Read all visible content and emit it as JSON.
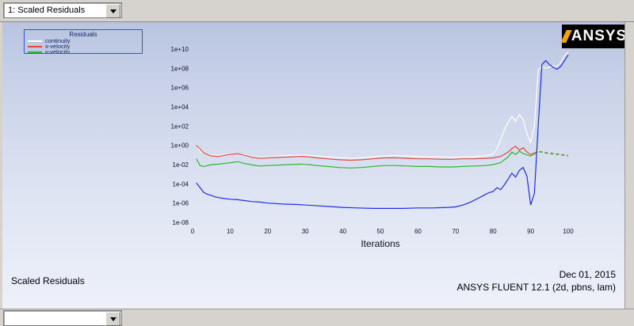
{
  "window": {
    "toolbar": {
      "combo_value": "1: Scaled Residuals"
    },
    "bottom_combo_value": ""
  },
  "logo": {
    "text": "ANSYS",
    "bg": "#000000",
    "fg": "#ffffff",
    "accent": "#f0a500"
  },
  "footer": {
    "caption": "Scaled Residuals",
    "date": "Dec 01, 2015",
    "app": "ANSYS FLUENT 12.1 (2d, pbns, lam)"
  },
  "chart_data": {
    "type": "line",
    "title": "Scaled Residuals",
    "xlabel": "Iterations",
    "x_range": [
      0,
      100
    ],
    "y_scale": "log10",
    "y_axis_exponent_range": [
      10,
      -8
    ],
    "y_ticks": [
      "1e+10",
      "1e+08",
      "1e+06",
      "1e+04",
      "1e+02",
      "1e+00",
      "1e-02",
      "1e-04",
      "1e-06",
      "1e-08"
    ],
    "y_tick_exponents": [
      10,
      8,
      6,
      4,
      2,
      0,
      -2,
      -4,
      -6,
      -8
    ],
    "x_ticks": [
      0,
      10,
      20,
      30,
      40,
      50,
      60,
      70,
      80,
      90,
      100
    ],
    "grid": false,
    "legend": {
      "title": "Residuals",
      "position": "top-left",
      "entries": [
        {
          "label": "continuity",
          "color": "#ffffff"
        },
        {
          "label": "x-velocity",
          "color": "#e04a3f"
        },
        {
          "label": "y-velocity",
          "color": "#2db82d"
        },
        {
          "label": "energy",
          "color": "#1f2fe8"
        }
      ]
    },
    "series": [
      {
        "name": "continuity",
        "color": "#ffffff",
        "points_log10": [
          [
            1,
            0.0
          ],
          [
            2,
            -0.6
          ],
          [
            3,
            -0.85
          ],
          [
            5,
            -1.0
          ],
          [
            7,
            -1.05
          ],
          [
            9,
            -0.95
          ],
          [
            11,
            -0.85
          ],
          [
            12,
            -0.8
          ],
          [
            14,
            -1.0
          ],
          [
            16,
            -1.15
          ],
          [
            18,
            -1.25
          ],
          [
            20,
            -1.2
          ],
          [
            23,
            -1.1
          ],
          [
            26,
            -1.05
          ],
          [
            29,
            -1.0
          ],
          [
            31,
            -1.05
          ],
          [
            33,
            -1.1
          ],
          [
            36,
            -1.2
          ],
          [
            39,
            -1.3
          ],
          [
            42,
            -1.35
          ],
          [
            45,
            -1.3
          ],
          [
            48,
            -1.2
          ],
          [
            51,
            -1.1
          ],
          [
            54,
            -1.05
          ],
          [
            57,
            -1.1
          ],
          [
            60,
            -1.15
          ],
          [
            63,
            -1.2
          ],
          [
            66,
            -1.2
          ],
          [
            69,
            -1.25
          ],
          [
            72,
            -1.2
          ],
          [
            75,
            -1.15
          ],
          [
            78,
            -1.1
          ],
          [
            80,
            -0.9
          ],
          [
            81,
            -0.4
          ],
          [
            82,
            0.6
          ],
          [
            83,
            1.6
          ],
          [
            84,
            2.4
          ],
          [
            85,
            3.0
          ],
          [
            86,
            2.5
          ],
          [
            87,
            3.2
          ],
          [
            88,
            2.7
          ],
          [
            89,
            1.2
          ],
          [
            90,
            0.3
          ],
          [
            91,
            2.0
          ],
          [
            92,
            7.8
          ],
          [
            93,
            8.2
          ],
          [
            94,
            8.0
          ],
          [
            95,
            8.1
          ],
          [
            96,
            8.3
          ],
          [
            97,
            8.2
          ],
          [
            98,
            8.6
          ],
          [
            99,
            9.3
          ],
          [
            100,
            9.7
          ]
        ]
      },
      {
        "name": "x-velocity",
        "color": "#e04a3f",
        "dash_from": 91,
        "points_log10": [
          [
            1,
            0.0
          ],
          [
            2,
            -0.4
          ],
          [
            3,
            -0.8
          ],
          [
            5,
            -1.1
          ],
          [
            7,
            -1.15
          ],
          [
            9,
            -1.0
          ],
          [
            11,
            -0.9
          ],
          [
            12,
            -0.85
          ],
          [
            14,
            -1.05
          ],
          [
            16,
            -1.25
          ],
          [
            18,
            -1.35
          ],
          [
            20,
            -1.3
          ],
          [
            23,
            -1.25
          ],
          [
            26,
            -1.2
          ],
          [
            29,
            -1.15
          ],
          [
            31,
            -1.2
          ],
          [
            33,
            -1.3
          ],
          [
            36,
            -1.4
          ],
          [
            39,
            -1.5
          ],
          [
            42,
            -1.55
          ],
          [
            45,
            -1.5
          ],
          [
            48,
            -1.4
          ],
          [
            51,
            -1.3
          ],
          [
            54,
            -1.3
          ],
          [
            57,
            -1.35
          ],
          [
            60,
            -1.4
          ],
          [
            63,
            -1.4
          ],
          [
            66,
            -1.45
          ],
          [
            69,
            -1.45
          ],
          [
            72,
            -1.4
          ],
          [
            75,
            -1.4
          ],
          [
            78,
            -1.35
          ],
          [
            80,
            -1.3
          ],
          [
            82,
            -1.15
          ],
          [
            84,
            -0.7
          ],
          [
            85,
            -0.35
          ],
          [
            86,
            -0.1
          ],
          [
            87,
            -0.5
          ],
          [
            88,
            -0.25
          ],
          [
            89,
            -0.7
          ],
          [
            90,
            -0.95
          ],
          [
            91,
            -0.8
          ],
          [
            92,
            -0.6
          ],
          [
            94,
            -0.75
          ],
          [
            96,
            -0.85
          ],
          [
            98,
            -0.95
          ],
          [
            100,
            -1.05
          ]
        ]
      },
      {
        "name": "y-velocity",
        "color": "#2db82d",
        "dash_from": 91,
        "points_log10": [
          [
            1,
            -1.4
          ],
          [
            2,
            -2.1
          ],
          [
            3,
            -2.2
          ],
          [
            5,
            -2.0
          ],
          [
            7,
            -1.95
          ],
          [
            9,
            -1.85
          ],
          [
            11,
            -1.75
          ],
          [
            12,
            -1.7
          ],
          [
            14,
            -1.9
          ],
          [
            16,
            -2.05
          ],
          [
            18,
            -2.15
          ],
          [
            20,
            -2.1
          ],
          [
            23,
            -2.05
          ],
          [
            26,
            -2.0
          ],
          [
            29,
            -1.95
          ],
          [
            31,
            -2.0
          ],
          [
            33,
            -2.1
          ],
          [
            36,
            -2.2
          ],
          [
            39,
            -2.3
          ],
          [
            42,
            -2.35
          ],
          [
            45,
            -2.3
          ],
          [
            48,
            -2.2
          ],
          [
            51,
            -2.1
          ],
          [
            54,
            -2.1
          ],
          [
            57,
            -2.15
          ],
          [
            60,
            -2.2
          ],
          [
            63,
            -2.2
          ],
          [
            66,
            -2.25
          ],
          [
            69,
            -2.25
          ],
          [
            72,
            -2.2
          ],
          [
            75,
            -2.15
          ],
          [
            78,
            -2.1
          ],
          [
            80,
            -2.0
          ],
          [
            82,
            -1.8
          ],
          [
            84,
            -1.2
          ],
          [
            85,
            -0.7
          ],
          [
            86,
            -0.95
          ],
          [
            87,
            -0.6
          ],
          [
            88,
            -0.85
          ],
          [
            89,
            -1.0
          ],
          [
            90,
            -1.1
          ],
          [
            91,
            -0.9
          ],
          [
            92,
            -0.65
          ],
          [
            94,
            -0.8
          ],
          [
            96,
            -0.9
          ],
          [
            98,
            -1.0
          ],
          [
            100,
            -1.1
          ]
        ]
      },
      {
        "name": "energy",
        "color": "#1f2fe8",
        "points_log10": [
          [
            1,
            -3.9
          ],
          [
            2,
            -4.4
          ],
          [
            3,
            -4.9
          ],
          [
            4,
            -5.1
          ],
          [
            5,
            -5.2
          ],
          [
            6,
            -5.35
          ],
          [
            8,
            -5.5
          ],
          [
            10,
            -5.6
          ],
          [
            12,
            -5.65
          ],
          [
            14,
            -5.75
          ],
          [
            16,
            -5.85
          ],
          [
            18,
            -5.9
          ],
          [
            20,
            -6.0
          ],
          [
            24,
            -6.1
          ],
          [
            28,
            -6.15
          ],
          [
            32,
            -6.25
          ],
          [
            36,
            -6.35
          ],
          [
            40,
            -6.45
          ],
          [
            44,
            -6.5
          ],
          [
            48,
            -6.55
          ],
          [
            52,
            -6.55
          ],
          [
            56,
            -6.55
          ],
          [
            60,
            -6.5
          ],
          [
            64,
            -6.5
          ],
          [
            68,
            -6.45
          ],
          [
            70,
            -6.4
          ],
          [
            72,
            -6.2
          ],
          [
            74,
            -5.9
          ],
          [
            76,
            -5.5
          ],
          [
            77,
            -5.3
          ],
          [
            78,
            -5.1
          ],
          [
            79,
            -4.9
          ],
          [
            80,
            -4.8
          ],
          [
            81,
            -4.4
          ],
          [
            82,
            -4.6
          ],
          [
            83,
            -4.1
          ],
          [
            84,
            -3.5
          ],
          [
            85,
            -2.9
          ],
          [
            86,
            -3.3
          ],
          [
            87,
            -2.6
          ],
          [
            88,
            -2.3
          ],
          [
            89,
            -3.2
          ],
          [
            90,
            -6.2
          ],
          [
            91,
            -5.0
          ],
          [
            92,
            2.0
          ],
          [
            93,
            8.4
          ],
          [
            94,
            8.8
          ],
          [
            95,
            8.4
          ],
          [
            96,
            8.1
          ],
          [
            97,
            7.9
          ],
          [
            98,
            8.2
          ],
          [
            99,
            8.8
          ],
          [
            100,
            9.4
          ]
        ]
      }
    ]
  }
}
